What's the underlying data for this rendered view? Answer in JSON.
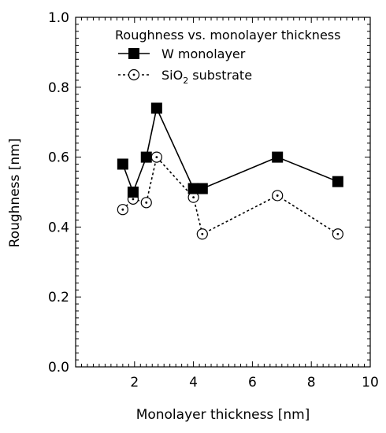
{
  "chart_data": {
    "type": "line",
    "xlabel": "Monolayer thickness [nm]",
    "ylabel": "Roughness [nm]",
    "xlim": [
      0,
      10
    ],
    "ylim": [
      0,
      1.0
    ],
    "x_ticks": [
      2,
      4,
      6,
      8,
      10
    ],
    "x_tick_labels": [
      "2",
      "4",
      "6",
      "8",
      "10"
    ],
    "y_ticks": [
      0.0,
      0.2,
      0.4,
      0.6,
      0.8,
      1.0
    ],
    "y_tick_labels": [
      "0.0",
      "0.2",
      "0.4",
      "0.6",
      "0.8",
      "1.0"
    ],
    "grid": false,
    "legend": {
      "title": "Roughness vs. monolayer thickness",
      "placement": "top-right",
      "entries": [
        {
          "label": "W monolayer"
        },
        {
          "label_main": "SiO",
          "label_sub": "2",
          "label_rest": " substrate"
        }
      ]
    },
    "series": [
      {
        "name": "W monolayer",
        "marker": "filled-square",
        "line": "solid",
        "color": "#000000",
        "x": [
          1.6,
          1.95,
          2.4,
          2.75,
          4.0,
          4.3,
          6.85,
          8.9
        ],
        "y": [
          0.58,
          0.5,
          0.6,
          0.74,
          0.51,
          0.51,
          0.6,
          0.53
        ]
      },
      {
        "name": "SiO2 substrate",
        "marker": "open-circle-dot",
        "line": "dashed",
        "color": "#000000",
        "x": [
          1.6,
          1.95,
          2.4,
          2.75,
          4.0,
          4.3,
          6.85,
          8.9
        ],
        "y": [
          0.45,
          0.48,
          0.47,
          0.6,
          0.485,
          0.38,
          0.49,
          0.38
        ]
      }
    ]
  }
}
